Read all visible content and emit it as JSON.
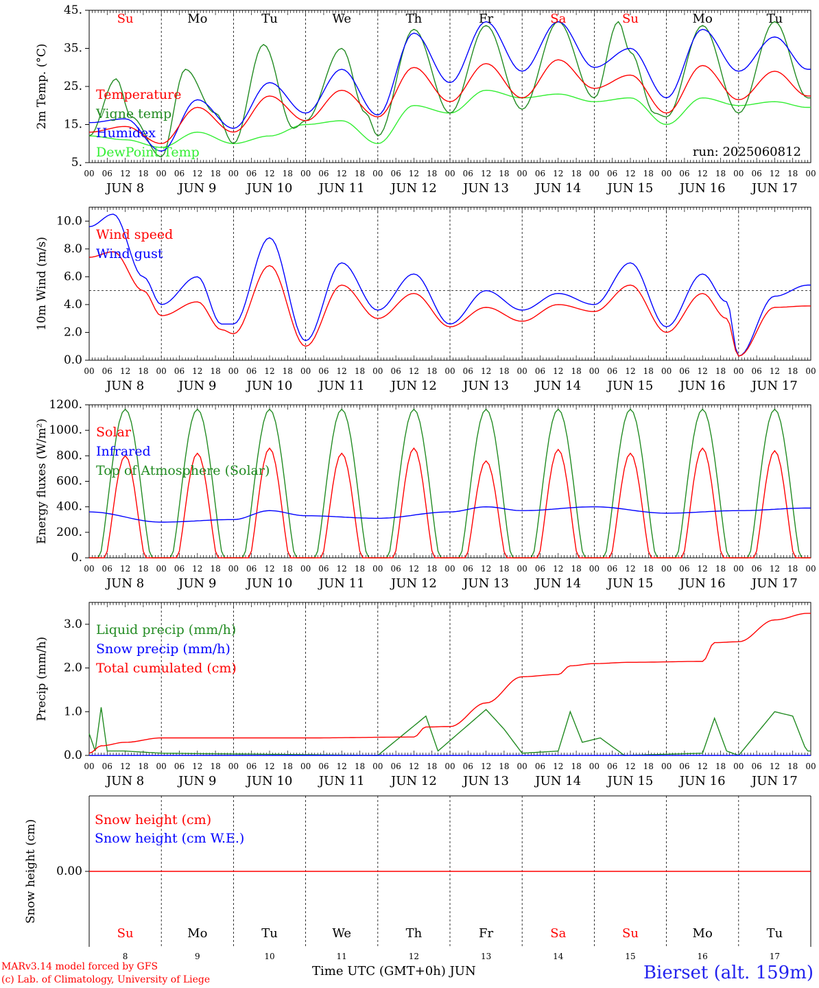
{
  "chart_data": [
    {
      "type": "line",
      "ylabel": "2m Temp. (°C)",
      "ylim": [
        5,
        45
      ],
      "yticks": [
        45,
        35,
        25,
        15,
        5
      ],
      "ytick_labels": [
        "45.",
        "35.",
        "25.",
        "15.",
        "5."
      ],
      "annotation": "run: 2025060812",
      "series": [
        {
          "name": "Temperature",
          "color": "#ff0000",
          "points": [
            [
              0,
              13
            ],
            [
              12,
              14.5
            ],
            [
              24,
              10
            ],
            [
              36,
              19.5
            ],
            [
              48,
              13
            ],
            [
              60,
              22.5
            ],
            [
              72,
              16
            ],
            [
              84,
              24
            ],
            [
              96,
              17
            ],
            [
              108,
              30
            ],
            [
              120,
              21
            ],
            [
              132,
              31
            ],
            [
              144,
              22
            ],
            [
              156,
              32
            ],
            [
              168,
              24.5
            ],
            [
              180,
              28
            ],
            [
              192,
              18
            ],
            [
              204,
              30.5
            ],
            [
              216,
              21.5
            ],
            [
              228,
              29
            ],
            [
              239,
              22.5
            ]
          ]
        },
        {
          "name": "Vigne temp",
          "color": "#228b22",
          "points": [
            [
              0,
              12
            ],
            [
              9,
              27
            ],
            [
              14,
              17
            ],
            [
              24,
              6.5
            ],
            [
              32,
              29.5
            ],
            [
              42,
              18
            ],
            [
              48,
              10
            ],
            [
              58,
              36
            ],
            [
              68,
              14
            ],
            [
              72,
              16
            ],
            [
              84,
              35
            ],
            [
              92,
              18
            ],
            [
              96,
              12
            ],
            [
              108,
              40
            ],
            [
              120,
              18
            ],
            [
              132,
              41
            ],
            [
              144,
              19
            ],
            [
              156,
              42
            ],
            [
              168,
              22
            ],
            [
              176,
              42
            ],
            [
              180,
              34
            ],
            [
              188,
              18
            ],
            [
              192,
              17
            ],
            [
              204,
              41
            ],
            [
              216,
              18
            ],
            [
              228,
              42
            ],
            [
              239,
              22
            ]
          ]
        },
        {
          "name": "Humidex",
          "color": "#0000ff",
          "points": [
            [
              0,
              15.5
            ],
            [
              12,
              16.5
            ],
            [
              24,
              8
            ],
            [
              36,
              21.5
            ],
            [
              48,
              14
            ],
            [
              60,
              26
            ],
            [
              72,
              18
            ],
            [
              84,
              29.5
            ],
            [
              96,
              17.5
            ],
            [
              108,
              39
            ],
            [
              120,
              26
            ],
            [
              132,
              42
            ],
            [
              144,
              29
            ],
            [
              156,
              42
            ],
            [
              168,
              30
            ],
            [
              180,
              35
            ],
            [
              192,
              22
            ],
            [
              204,
              40
            ],
            [
              216,
              29
            ],
            [
              228,
              38
            ],
            [
              239,
              29.5
            ]
          ]
        },
        {
          "name": "DewPoint Temp",
          "color": "#33ee33",
          "points": [
            [
              0,
              12
            ],
            [
              12,
              11
            ],
            [
              24,
              9
            ],
            [
              36,
              13
            ],
            [
              48,
              10
            ],
            [
              60,
              12
            ],
            [
              72,
              15
            ],
            [
              84,
              16
            ],
            [
              96,
              10
            ],
            [
              108,
              20
            ],
            [
              120,
              18
            ],
            [
              132,
              24
            ],
            [
              144,
              22
            ],
            [
              156,
              23
            ],
            [
              168,
              21
            ],
            [
              180,
              22
            ],
            [
              192,
              15
            ],
            [
              204,
              22
            ],
            [
              216,
              20
            ],
            [
              228,
              21
            ],
            [
              239,
              19.5
            ]
          ]
        }
      ]
    },
    {
      "type": "line",
      "ylabel": "10m Wind (m/s)",
      "ylim": [
        0,
        11
      ],
      "yticks": [
        0,
        2,
        4,
        6,
        8,
        10
      ],
      "ytick_labels": [
        "0.0",
        "2.0",
        "4.0",
        "6.0",
        "8.0",
        "10.0"
      ],
      "reference_line": 5,
      "series": [
        {
          "name": "Wind speed",
          "color": "#ff0000",
          "points": [
            [
              0,
              7.4
            ],
            [
              8,
              7.8
            ],
            [
              18,
              5
            ],
            [
              24,
              3.2
            ],
            [
              36,
              4.2
            ],
            [
              44,
              2.2
            ],
            [
              48,
              1.9
            ],
            [
              60,
              6.8
            ],
            [
              72,
              1
            ],
            [
              84,
              5.4
            ],
            [
              96,
              3
            ],
            [
              108,
              4.8
            ],
            [
              120,
              2.4
            ],
            [
              132,
              3.8
            ],
            [
              144,
              2.8
            ],
            [
              156,
              4
            ],
            [
              168,
              3.5
            ],
            [
              180,
              5.4
            ],
            [
              192,
              2
            ],
            [
              204,
              4.8
            ],
            [
              212,
              3
            ],
            [
              216,
              0.3
            ],
            [
              228,
              3.8
            ],
            [
              239,
              3.9
            ]
          ]
        },
        {
          "name": "Wind gust",
          "color": "#0000ff",
          "points": [
            [
              0,
              9.6
            ],
            [
              8,
              10.5
            ],
            [
              18,
              6
            ],
            [
              24,
              4
            ],
            [
              36,
              6
            ],
            [
              44,
              2.6
            ],
            [
              48,
              2.6
            ],
            [
              60,
              8.8
            ],
            [
              72,
              1.4
            ],
            [
              84,
              7
            ],
            [
              96,
              3.6
            ],
            [
              108,
              6.2
            ],
            [
              120,
              2.6
            ],
            [
              132,
              5
            ],
            [
              144,
              3.6
            ],
            [
              156,
              4.8
            ],
            [
              168,
              4
            ],
            [
              180,
              7
            ],
            [
              192,
              2.4
            ],
            [
              204,
              6.2
            ],
            [
              212,
              4.2
            ],
            [
              216,
              0.3
            ],
            [
              228,
              4.6
            ],
            [
              239,
              5.4
            ]
          ]
        }
      ]
    },
    {
      "type": "line",
      "ylabel": "Energy fluxes (W/m²)",
      "ylim": [
        0,
        1200
      ],
      "yticks": [
        0,
        200,
        400,
        600,
        800,
        1000,
        1200
      ],
      "ytick_labels": [
        "0.",
        "200.",
        "400.",
        "600.",
        "800.",
        "1000.",
        "1200."
      ],
      "series": [
        {
          "name": "Solar",
          "color": "#ff0000",
          "peaks": [
            800,
            820,
            860,
            820,
            860,
            760,
            850,
            820,
            860,
            840
          ]
        },
        {
          "name": "Infrared",
          "color": "#0000ff",
          "points": [
            [
              0,
              360
            ],
            [
              24,
              280
            ],
            [
              48,
              300
            ],
            [
              60,
              370
            ],
            [
              72,
              330
            ],
            [
              96,
              310
            ],
            [
              120,
              360
            ],
            [
              132,
              400
            ],
            [
              144,
              370
            ],
            [
              168,
              400
            ],
            [
              192,
              350
            ],
            [
              216,
              370
            ],
            [
              239,
              390
            ]
          ]
        },
        {
          "name": "Top of Atmosphere (Solar)",
          "color": "#228b22",
          "peaks": [
            1165,
            1165,
            1165,
            1165,
            1165,
            1165,
            1165,
            1165,
            1165,
            1165
          ]
        }
      ]
    },
    {
      "type": "line",
      "ylabel": "Precip (mm/h)",
      "ylim": [
        0,
        3.5
      ],
      "yticks": [
        0,
        1,
        2,
        3
      ],
      "ytick_labels": [
        "0.0",
        "1.0",
        "2.0",
        "3.0"
      ],
      "series": [
        {
          "name": "Liquid precip (mm/h)",
          "color": "#228b22",
          "points": [
            [
              0,
              0.5
            ],
            [
              2,
              0.1
            ],
            [
              4,
              1.1
            ],
            [
              6,
              0.1
            ],
            [
              12,
              0.1
            ],
            [
              24,
              0.05
            ],
            [
              96,
              0
            ],
            [
              112,
              0.9
            ],
            [
              116,
              0.1
            ],
            [
              132,
              1.05
            ],
            [
              138,
              0.6
            ],
            [
              144,
              0.05
            ],
            [
              156,
              0.1
            ],
            [
              160,
              1
            ],
            [
              164,
              0.3
            ],
            [
              170,
              0.4
            ],
            [
              178,
              0
            ],
            [
              204,
              0.05
            ],
            [
              208,
              0.85
            ],
            [
              212,
              0.1
            ],
            [
              216,
              0
            ],
            [
              228,
              1
            ],
            [
              234,
              0.9
            ],
            [
              238,
              0.2
            ],
            [
              239,
              0.1
            ]
          ]
        },
        {
          "name": "Snow precip (mm/h)",
          "color": "#0000ff",
          "points": [
            [
              0,
              0
            ],
            [
              239,
              0
            ]
          ]
        },
        {
          "name": "Total cumulated (cm)",
          "color": "#ff0000",
          "points": [
            [
              0,
              0.05
            ],
            [
              4,
              0.22
            ],
            [
              12,
              0.3
            ],
            [
              24,
              0.4
            ],
            [
              72,
              0.4
            ],
            [
              108,
              0.42
            ],
            [
              112,
              0.65
            ],
            [
              120,
              0.66
            ],
            [
              132,
              1.2
            ],
            [
              144,
              1.8
            ],
            [
              156,
              1.85
            ],
            [
              160,
              2.05
            ],
            [
              168,
              2.1
            ],
            [
              180,
              2.13
            ],
            [
              204,
              2.15
            ],
            [
              208,
              2.58
            ],
            [
              216,
              2.6
            ],
            [
              228,
              3.1
            ],
            [
              239,
              3.25
            ]
          ]
        }
      ]
    },
    {
      "type": "line",
      "ylabel": "Snow height (cm)",
      "ytick_labels": [
        "0.00"
      ],
      "series": [
        {
          "name": "Snow height (cm)",
          "color": "#ff0000"
        },
        {
          "name": "Snow height (cm W.E.)",
          "color": "#0000ff"
        }
      ]
    }
  ],
  "axis": {
    "hour_labels": [
      "00",
      "06",
      "12",
      "18"
    ],
    "final_hour": "00",
    "date_labels": [
      "JUN  8",
      "JUN  9",
      "JUN 10",
      "JUN 11",
      "JUN 12",
      "JUN 13",
      "JUN 14",
      "JUN 15",
      "JUN 16",
      "JUN 17"
    ],
    "weekdays": [
      "Su",
      "Mo",
      "Tu",
      "We",
      "Th",
      "Fr",
      "Sa",
      "Su",
      "Mo",
      "Tu"
    ],
    "weekday_colors": [
      "#ff0000",
      "#000000",
      "#000000",
      "#000000",
      "#000000",
      "#000000",
      "#ff0000",
      "#ff0000",
      "#000000",
      "#000000"
    ],
    "day_numbers": [
      "8",
      "9",
      "10",
      "11",
      "12",
      "13",
      "14",
      "15",
      "16",
      "17"
    ]
  },
  "footer": {
    "model_line": "MARv3.14 model forced by GFS",
    "lab_line": "(c) Lab. of Climatology, University of Liege",
    "axis_title": "Time UTC (GMT+0h) JUN",
    "station": "Bierset (alt. 159m)"
  }
}
